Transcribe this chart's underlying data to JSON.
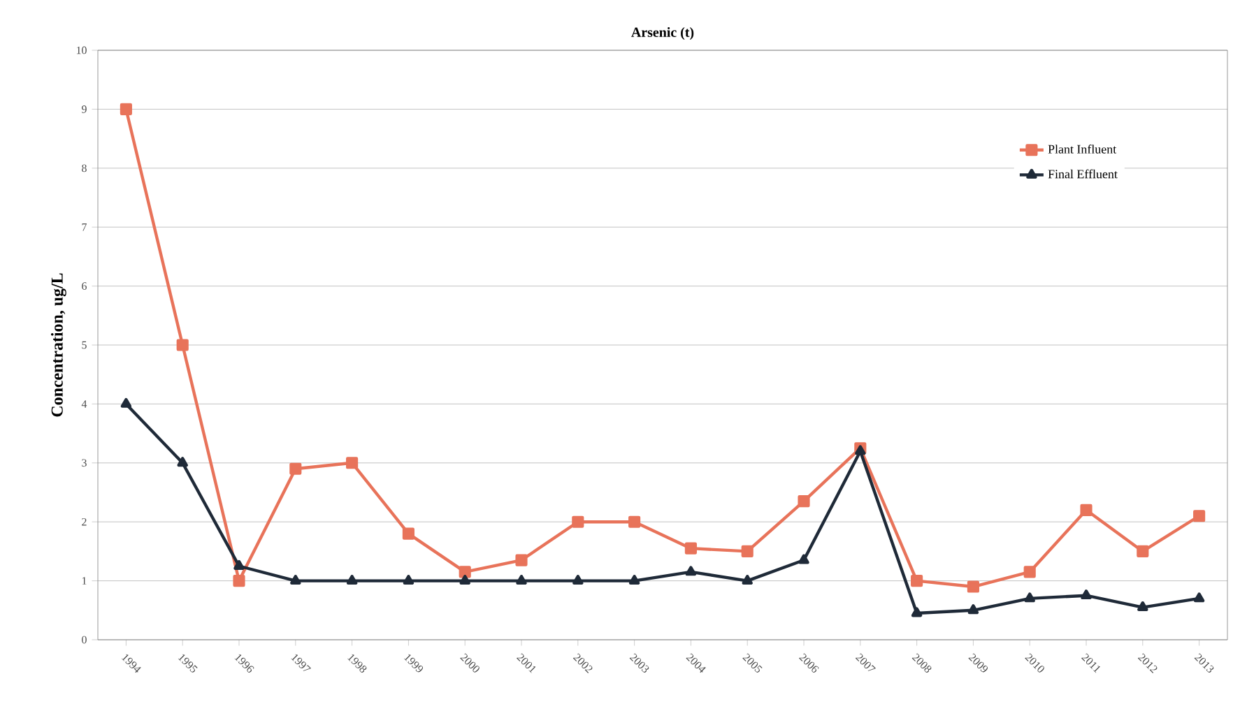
{
  "chart_data": {
    "type": "line",
    "title": "Arsenic (t)",
    "ylabel": "Concentration, ug/L",
    "categories": [
      "1994",
      "1995",
      "1996",
      "1997",
      "1998",
      "1999",
      "2000",
      "2001",
      "2002",
      "2003",
      "2004",
      "2005",
      "2006",
      "2007",
      "2008",
      "2009",
      "2010",
      "2011",
      "2012",
      "2013"
    ],
    "series": [
      {
        "name": "Plant Influent",
        "color": "#e8735a",
        "marker": "square",
        "values": [
          9,
          5,
          1,
          2.9,
          3,
          1.8,
          1.15,
          1.35,
          2,
          2,
          1.55,
          1.5,
          2.35,
          3.25,
          1,
          0.9,
          1.15,
          2.2,
          1.5,
          2.1
        ]
      },
      {
        "name": "Final Effluent",
        "color": "#1f2a38",
        "marker": "triangle",
        "values": [
          4,
          3,
          1.25,
          1,
          1,
          1,
          1,
          1,
          1,
          1,
          1.15,
          1,
          1.35,
          3.2,
          0.45,
          0.5,
          0.7,
          0.75,
          0.55,
          0.7
        ]
      }
    ],
    "ylim": [
      0,
      10
    ],
    "yticks": [
      0,
      1,
      2,
      3,
      4,
      5,
      6,
      7,
      8,
      9,
      10
    ],
    "grid": "y",
    "legend": "top right"
  }
}
